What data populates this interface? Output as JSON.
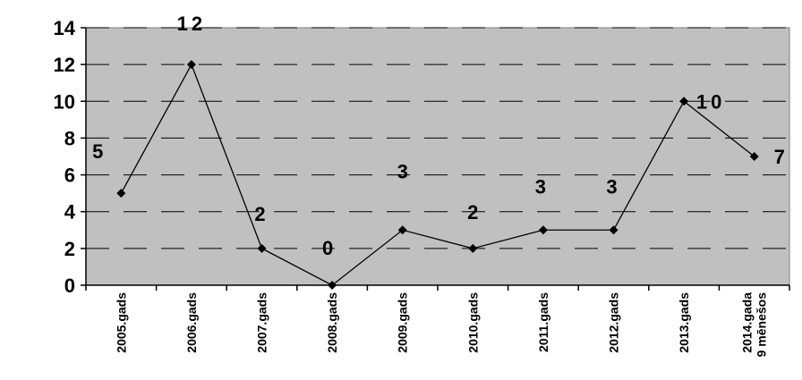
{
  "chart_data": {
    "type": "line",
    "title": "",
    "xlabel": "",
    "ylabel": "",
    "categories": [
      [
        "2005.gads"
      ],
      [
        "2006.gads"
      ],
      [
        "2007.gads"
      ],
      [
        "2008.gads"
      ],
      [
        "2009.gads"
      ],
      [
        "2010.gads"
      ],
      [
        "2011.gads"
      ],
      [
        "2012.gads"
      ],
      [
        "2013.gads"
      ],
      [
        "2014.gada",
        "9 mēnešos"
      ]
    ],
    "series": [
      {
        "values": [
          5,
          12,
          2,
          0,
          3,
          2,
          3,
          3,
          10,
          7
        ]
      }
    ],
    "data_labels": [
      "5",
      "12",
      "2",
      "0",
      "3",
      "2",
      "3",
      "3",
      "10",
      "7"
    ],
    "ylim": [
      0,
      14
    ],
    "yticks": [
      "0",
      "2",
      "4",
      "6",
      "8",
      "10",
      "12",
      "14"
    ],
    "grid": true,
    "colors": {
      "plot_background": "#c0c0c0",
      "line": "#000000",
      "gridline": "#000000"
    }
  }
}
